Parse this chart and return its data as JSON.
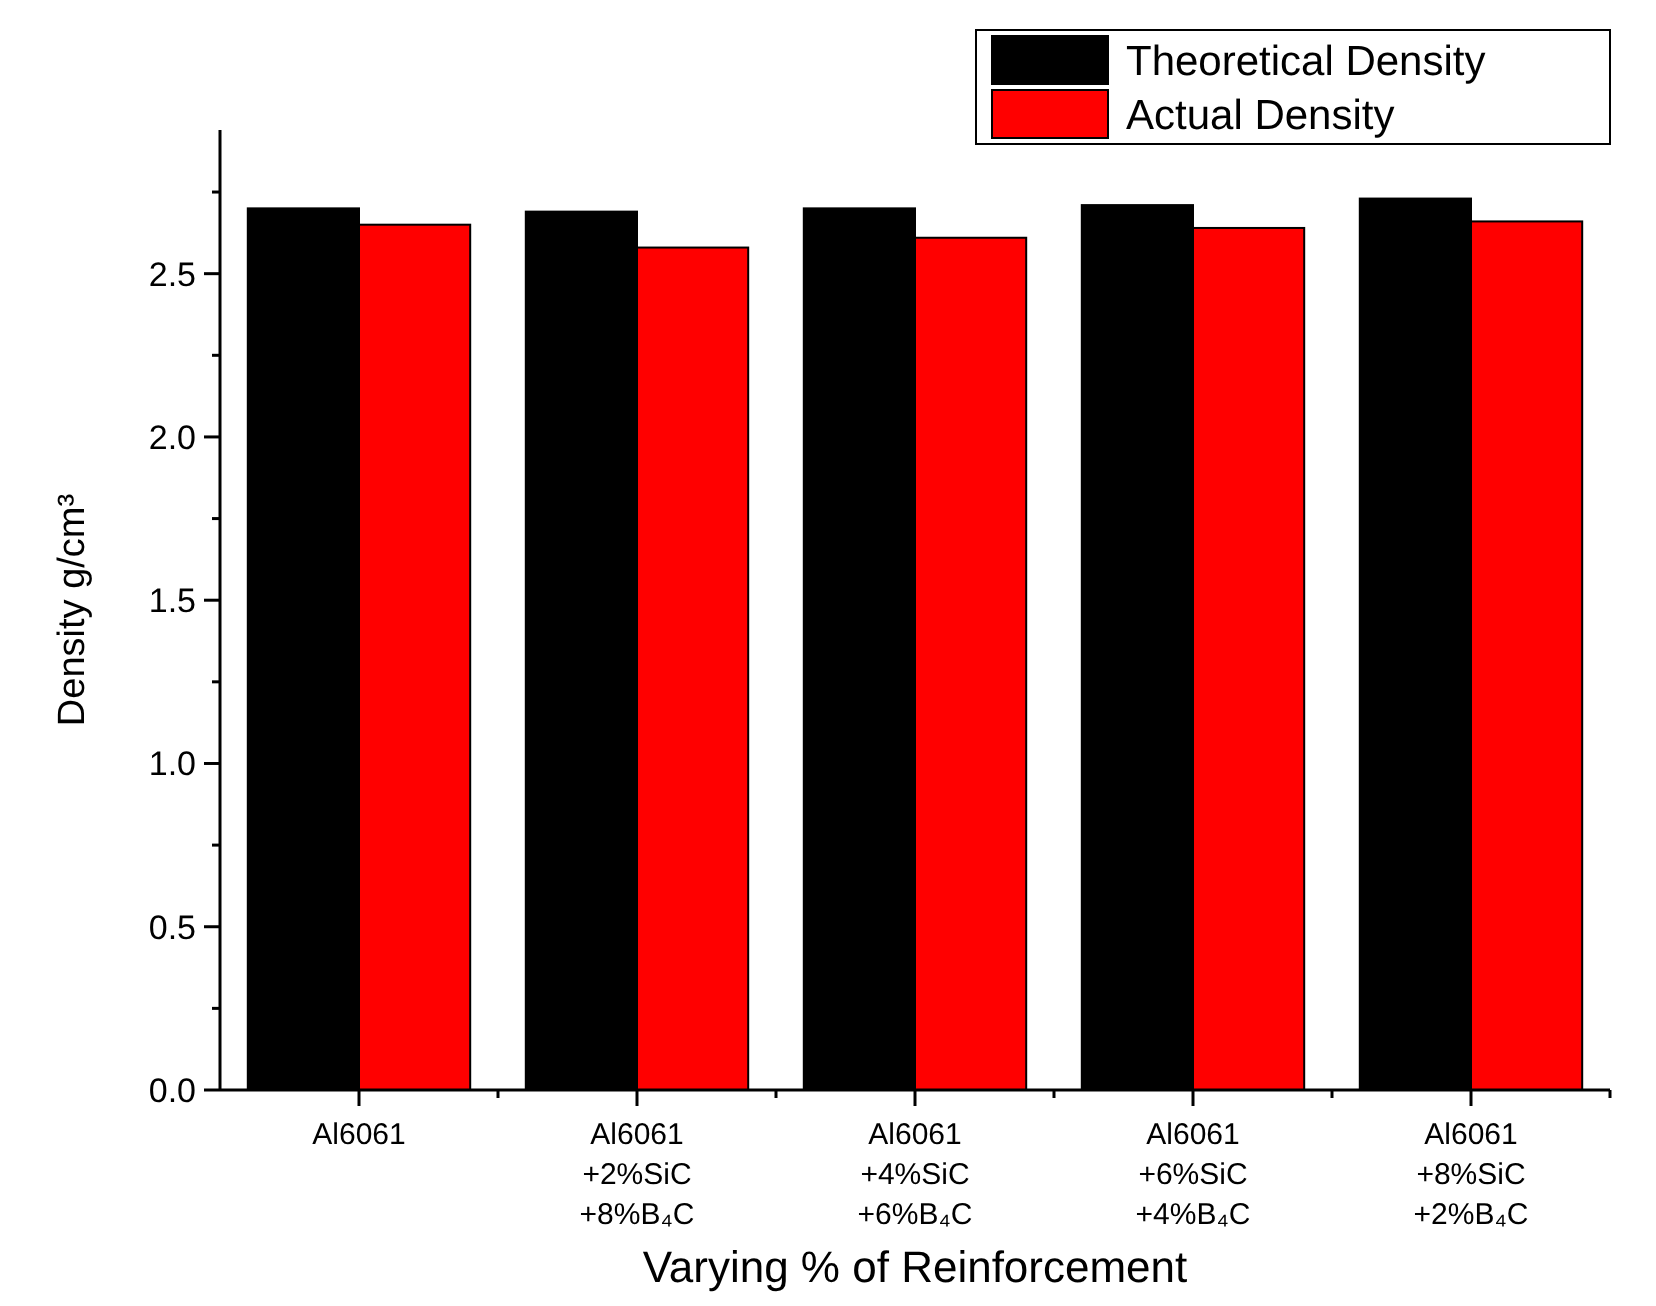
{
  "chart_data": {
    "type": "bar",
    "xlabel": "Varying % of Reinforcement",
    "ylabel": "Density g/cm³",
    "categories": [
      "Al6061",
      "Al6061\n+2%SiC\n+8%B₄C",
      "Al6061\n+4%SiC\n+6%B₄C",
      "Al6061\n+6%SiC\n+4%B₄C",
      "Al6061\n+8%SiC\n+2%B₄C"
    ],
    "series": [
      {
        "name": "Theoretical Density",
        "color": "#000000",
        "values": [
          2.7,
          2.69,
          2.7,
          2.71,
          2.73
        ]
      },
      {
        "name": "Actual Density",
        "color": "#ff0000",
        "values": [
          2.65,
          2.58,
          2.61,
          2.64,
          2.66
        ]
      }
    ],
    "ylim": [
      0,
      2.94
    ],
    "yticks": [
      {
        "value": 0,
        "label": "0.0"
      },
      {
        "value": 0.25,
        "label": null
      },
      {
        "value": 0.5,
        "label": "0.5"
      },
      {
        "value": 0.75,
        "label": null
      },
      {
        "value": 1,
        "label": "1.0"
      },
      {
        "value": 1.25,
        "label": null
      },
      {
        "value": 1.5,
        "label": "1.5"
      },
      {
        "value": 1.75,
        "label": null
      },
      {
        "value": 2,
        "label": "2.0"
      },
      {
        "value": 2.25,
        "label": null
      },
      {
        "value": 2.5,
        "label": "2.5"
      },
      {
        "value": 2.75,
        "label": null
      }
    ],
    "legend": "top right",
    "grid": false
  }
}
